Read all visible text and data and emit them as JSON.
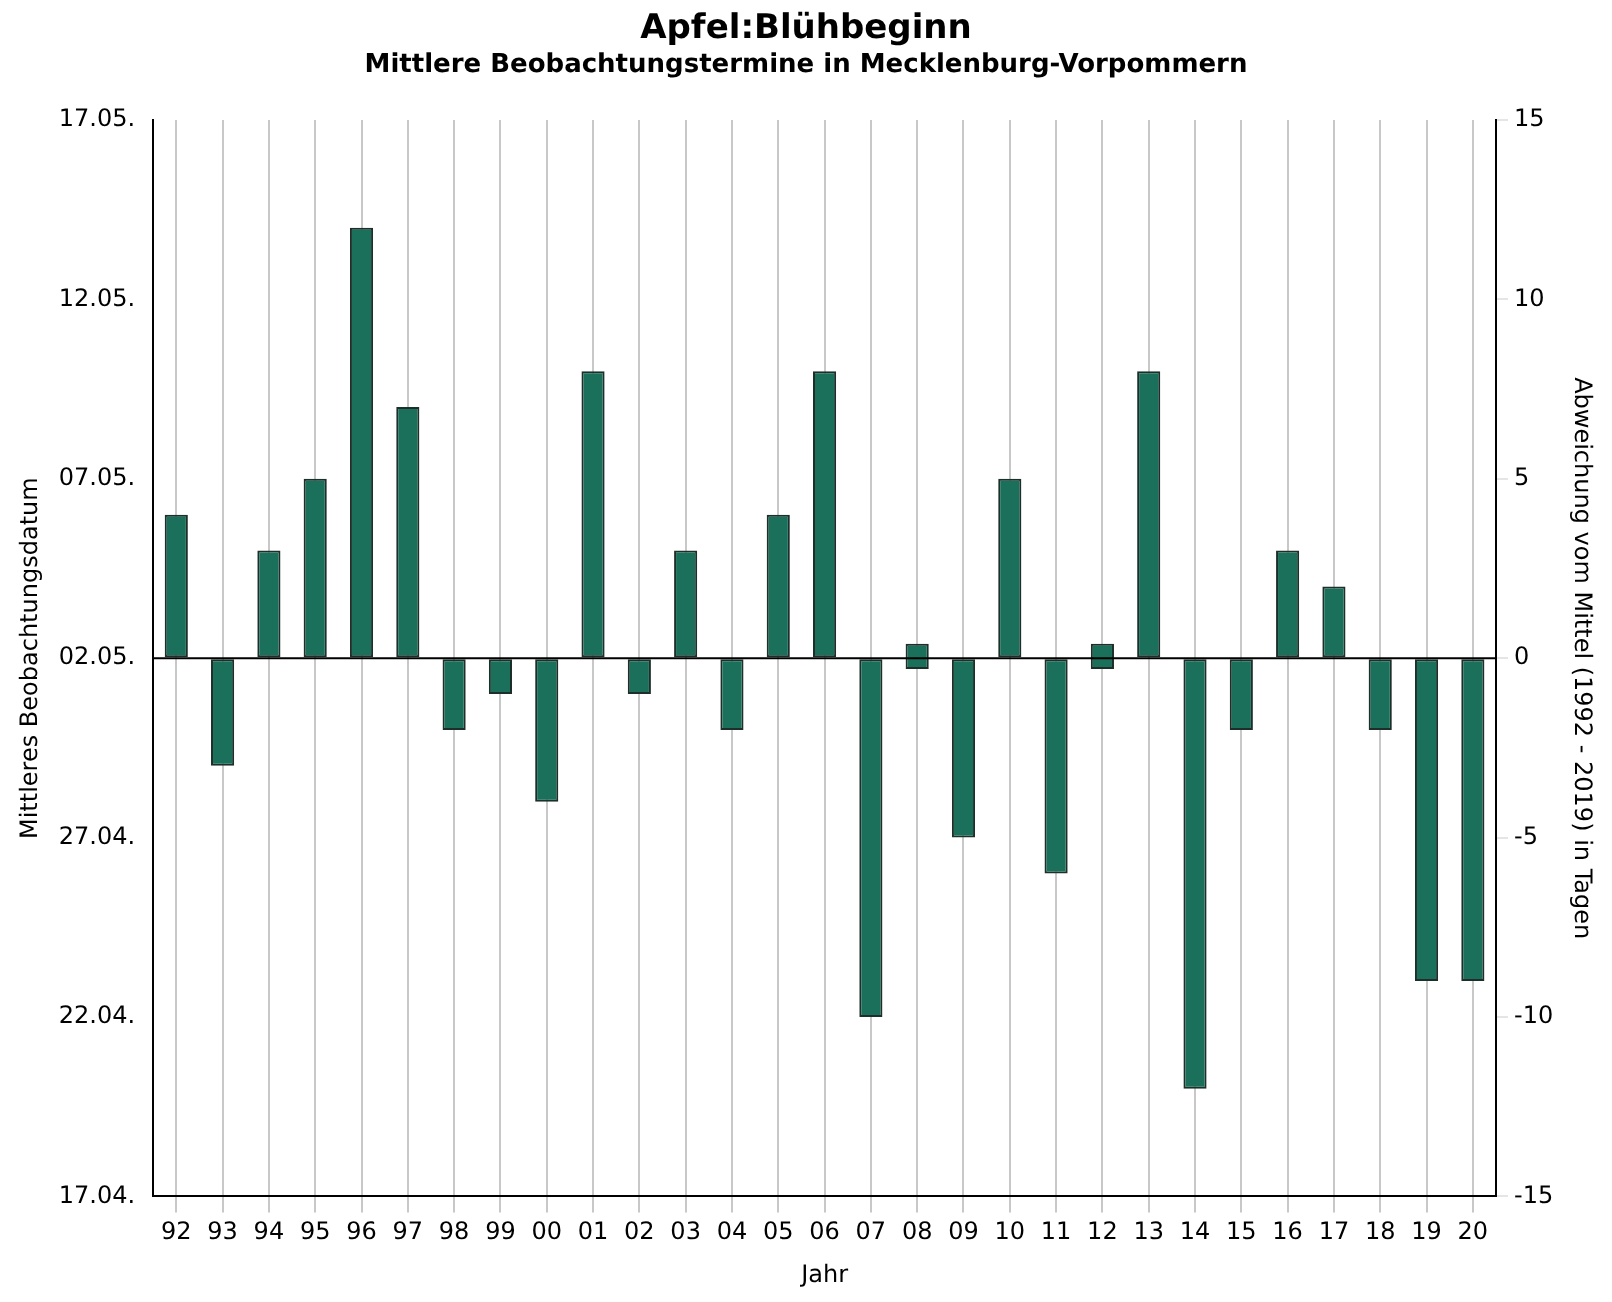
{
  "chart_data": {
    "type": "bar",
    "title": "Apfel:Blühbeginn",
    "subtitle": "Mittlere Beobachtungstermine in Mecklenburg-Vorpommern",
    "xlabel": "Jahr",
    "ylabel": "Mittleres Beobachtungsdatum",
    "y2label": "Abweichung vom Mittel (1992 - 2019) in Tagen",
    "categories": [
      "92",
      "93",
      "94",
      "95",
      "96",
      "97",
      "98",
      "99",
      "00",
      "01",
      "02",
      "03",
      "04",
      "05",
      "06",
      "07",
      "08",
      "09",
      "10",
      "11",
      "12",
      "13",
      "14",
      "15",
      "16",
      "17",
      "18",
      "19",
      "20"
    ],
    "series": [
      {
        "color": "#1a705a",
        "axis": "y2",
        "values": [
          4,
          -3,
          3,
          5,
          12,
          7,
          -2,
          -1,
          -4,
          8,
          -1,
          3,
          -2,
          4,
          8,
          -10,
          0.7,
          -5,
          5,
          -6,
          0.7,
          8,
          -12,
          -2,
          3,
          2,
          -2,
          -9,
          -9
        ],
        "base": [
          0,
          0,
          0,
          0,
          0,
          0,
          0,
          0,
          0,
          0,
          0,
          0,
          0,
          0,
          0,
          0,
          -0.3,
          0,
          0,
          0,
          -0.3,
          0,
          0,
          0,
          0,
          0,
          0,
          0,
          0
        ]
      }
    ],
    "ylim": [
      "--04-17",
      "--05-17"
    ],
    "yticks": [
      {
        "value": "--04-17",
        "label": "17.04."
      },
      {
        "value": "--04-22",
        "label": "22.04."
      },
      {
        "value": "--04-27",
        "label": "27.04."
      },
      {
        "value": "--05-02",
        "label": "02.05."
      },
      {
        "value": "--05-07",
        "label": "07.05."
      },
      {
        "value": "--05-12",
        "label": "12.05."
      },
      {
        "value": "--05-17",
        "label": "17.05."
      }
    ],
    "y2lim": [
      -15,
      15
    ],
    "y2ticks": [
      -15,
      -10,
      -5,
      0,
      5,
      10,
      15
    ],
    "ref_lines": [
      {
        "axis": "y2",
        "value": 0,
        "color": "#000000"
      }
    ],
    "grid": "x",
    "legend": false
  }
}
